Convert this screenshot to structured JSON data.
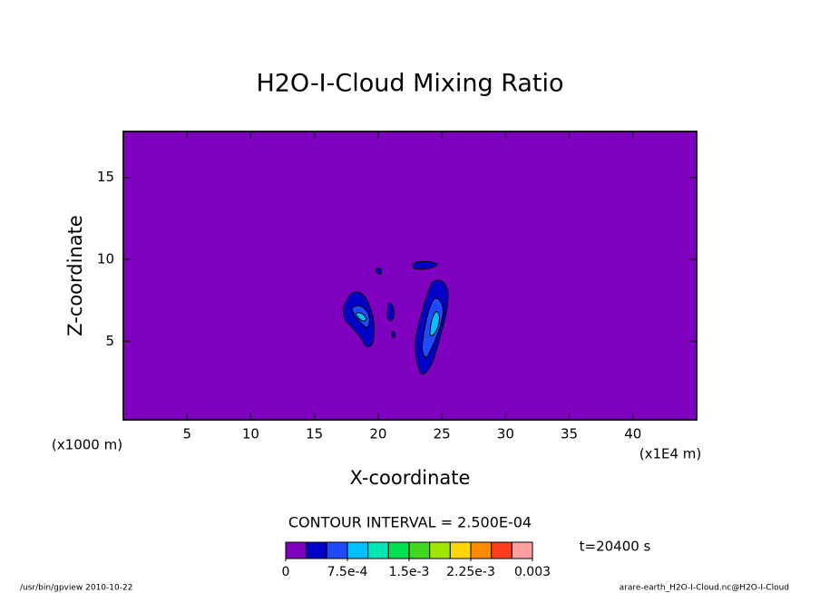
{
  "chart_data": {
    "type": "contour",
    "title": "H2O-I-Cloud Mixing Ratio",
    "x_label": "X-coordinate",
    "y_label": "Z-coordinate",
    "x_unit_left": "(x1000 m)",
    "x_unit_right": "(x1E4 m)",
    "xlim": [
      0,
      45
    ],
    "xticks": [
      5,
      10,
      15,
      20,
      25,
      30,
      35,
      40
    ],
    "ylim": [
      0.2,
      17.8
    ],
    "yticks": [
      5,
      10,
      15
    ],
    "background_color": "#7f00bf",
    "contour_interval_text": "CONTOUR INTERVAL = 2.500E-04",
    "colorbar": {
      "clim": [
        0,
        0.003
      ],
      "ticks": [
        0,
        {
          "value": 0.00075,
          "label": "7.5e-4"
        },
        {
          "value": 0.0015,
          "label": "1.5e-3"
        },
        {
          "value": 0.00225,
          "label": "2.25e-3"
        },
        0.003
      ],
      "colors": [
        "#7f00bf",
        "#0000c8",
        "#1e4bff",
        "#00c0ff",
        "#00e6b4",
        "#00e050",
        "#40d820",
        "#a0e600",
        "#ffd700",
        "#ff8c00",
        "#ff3c1e",
        "#ffa0a0"
      ]
    },
    "time_label": "t=20400 s",
    "footer_left": "/usr/bin/gpview  2010-10-22",
    "footer_right": "arare-earth_H2O-I-Cloud.nc@H2O-I-Cloud"
  }
}
